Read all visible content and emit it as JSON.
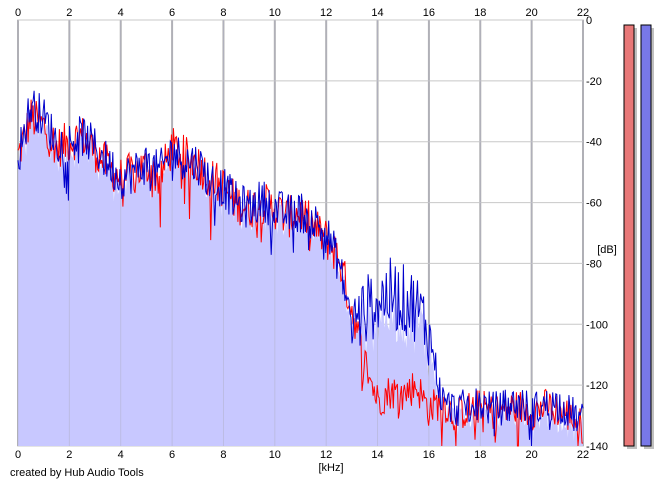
{
  "chart_data": {
    "type": "area",
    "xlabel": "[kHz]",
    "ylabel": "[dB]",
    "xlim": [
      0,
      22
    ],
    "ylim": [
      -140,
      0
    ],
    "x_ticks": [
      "0",
      "2",
      "4",
      "6",
      "8",
      "10",
      "12",
      "14",
      "16",
      "18",
      "20",
      "22"
    ],
    "y_ticks": [
      "0",
      "-20",
      "-40",
      "-60",
      "-80",
      "-100",
      "-120",
      "-140"
    ],
    "grid": true,
    "x_ticks_top_and_bottom": true,
    "series": [
      {
        "color": "#ff0000",
        "x": [
          0,
          0.5,
          1,
          1.5,
          2,
          2.5,
          3,
          3.5,
          4,
          4.5,
          5,
          5.5,
          6,
          6.5,
          7,
          7.5,
          8,
          8.5,
          9,
          9.5,
          10,
          10.5,
          11,
          11.5,
          12,
          12.5,
          13,
          13.5,
          14,
          14.5,
          15,
          15.5,
          16,
          16.5,
          17,
          17.5,
          18,
          18.5,
          19,
          19.5,
          20,
          20.5,
          21,
          21.5,
          22
        ],
        "y": [
          -45,
          -32,
          -35,
          -42,
          -40,
          -38,
          -43,
          -48,
          -52,
          -50,
          -48,
          -52,
          -42,
          -45,
          -47,
          -52,
          -55,
          -60,
          -62,
          -60,
          -62,
          -65,
          -63,
          -68,
          -72,
          -78,
          -95,
          -112,
          -125,
          -122,
          -123,
          -120,
          -128,
          -125,
          -130,
          -128,
          -127,
          -129,
          -128,
          -127,
          -129,
          -127,
          -128,
          -130,
          -134
        ]
      },
      {
        "color": "#0000cc",
        "x": [
          0,
          0.5,
          1,
          1.5,
          2,
          2.5,
          3,
          3.5,
          4,
          4.5,
          5,
          5.5,
          6,
          6.5,
          7,
          7.5,
          8,
          8.5,
          9,
          9.5,
          10,
          10.5,
          11,
          11.5,
          12,
          12.5,
          13,
          13.5,
          14,
          14.5,
          15,
          15.5,
          16,
          16.5,
          17,
          17.5,
          18,
          18.5,
          19,
          19.5,
          20,
          20.5,
          21,
          21.5,
          22
        ],
        "y": [
          -45,
          -28,
          -32,
          -40,
          -40,
          -38,
          -42,
          -47,
          -52,
          -50,
          -47,
          -50,
          -43,
          -46,
          -47,
          -53,
          -55,
          -60,
          -62,
          -59,
          -62,
          -64,
          -63,
          -66,
          -70,
          -80,
          -100,
          -96,
          -92,
          -90,
          -92,
          -94,
          -102,
          -125,
          -128,
          -127,
          -126,
          -128,
          -127,
          -126,
          -128,
          -127,
          -126,
          -129,
          -132
        ]
      }
    ],
    "fill_color": "#c8c8ff",
    "level_meters": [
      {
        "color": "#e87878",
        "level": 1.0
      },
      {
        "color": "#7878e8",
        "level": 1.0
      }
    ]
  },
  "footer": {
    "credit": "created by Hub Audio Tools"
  }
}
